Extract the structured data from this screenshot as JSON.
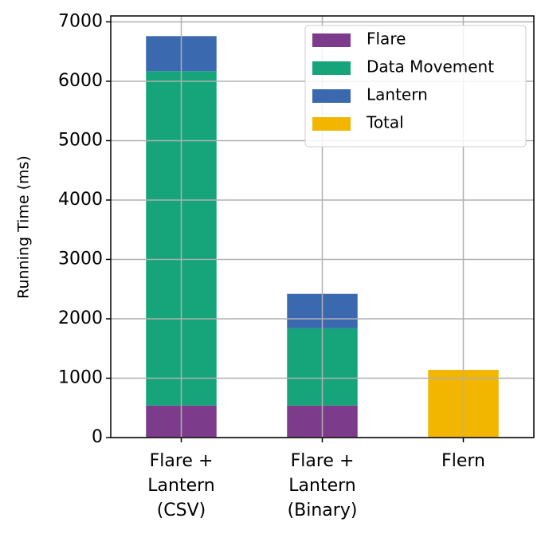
{
  "chart_data": {
    "type": "stacked_bar",
    "y_label": "Running Time (ms)",
    "categories": [
      [
        "Flare +",
        "Lantern",
        "(CSV)"
      ],
      [
        "Flare +",
        "Lantern",
        "(Binary)"
      ],
      [
        "Flern"
      ]
    ],
    "series": [
      {
        "name": "Flare",
        "color": "#7d3c8b",
        "values": [
          540,
          540,
          null
        ]
      },
      {
        "name": "Data Movement",
        "color": "#16a57a",
        "values": [
          5630,
          1300,
          null
        ]
      },
      {
        "name": "Lantern",
        "color": "#3b69b0",
        "values": [
          590,
          580,
          null
        ]
      },
      {
        "name": "Total",
        "color": "#f2b600",
        "values": [
          null,
          null,
          1140
        ]
      }
    ],
    "ylim": [
      0,
      7100
    ],
    "yticks": [
      0,
      1000,
      2000,
      3000,
      4000,
      5000,
      6000,
      7000
    ],
    "grid": true,
    "legend": "upper right"
  }
}
